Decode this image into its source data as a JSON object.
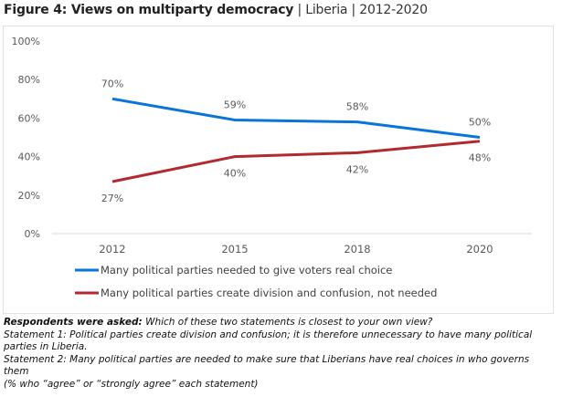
{
  "figure": {
    "title_bold": "Figure 4: Views on multiparty democracy",
    "title_rest": " | Liberia | 2012-2020"
  },
  "chart_data": {
    "type": "line",
    "title": "Figure 4: Views on multiparty democracy | Liberia | 2012-2020",
    "xlabel": "",
    "ylabel": "",
    "categories": [
      "2012",
      "2015",
      "2018",
      "2020"
    ],
    "ylim": [
      0,
      100
    ],
    "yticks": [
      0,
      20,
      40,
      60,
      80,
      100
    ],
    "ytick_labels": [
      "0%",
      "20%",
      "40%",
      "60%",
      "80%",
      "100%"
    ],
    "grid": false,
    "legend_position": "bottom",
    "series": [
      {
        "name": "Many political parties needed to give voters real choice",
        "color": "#0a74d8",
        "values": [
          70,
          59,
          58,
          50
        ],
        "labels": [
          "70%",
          "59%",
          "58%",
          "50%"
        ],
        "label_position": "above"
      },
      {
        "name": "Many political parties create division and confusion, not needed",
        "color": "#b22a30",
        "values": [
          27,
          40,
          42,
          48
        ],
        "labels": [
          "27%",
          "40%",
          "42%",
          "48%"
        ],
        "label_position": "below"
      }
    ]
  },
  "notes": {
    "lead": "Respondents were asked:",
    "question": " Which of these two statements is closest to your own view?",
    "statement1": "Statement 1: Political parties create division and confusion; it is therefore unnecessary to have many political parties in Liberia.",
    "statement2": "Statement 2: Many political parties are needed to make sure that Liberians have real choices in who governs them",
    "footnote": "(% who “agree” or “strongly agree” each statement)"
  }
}
